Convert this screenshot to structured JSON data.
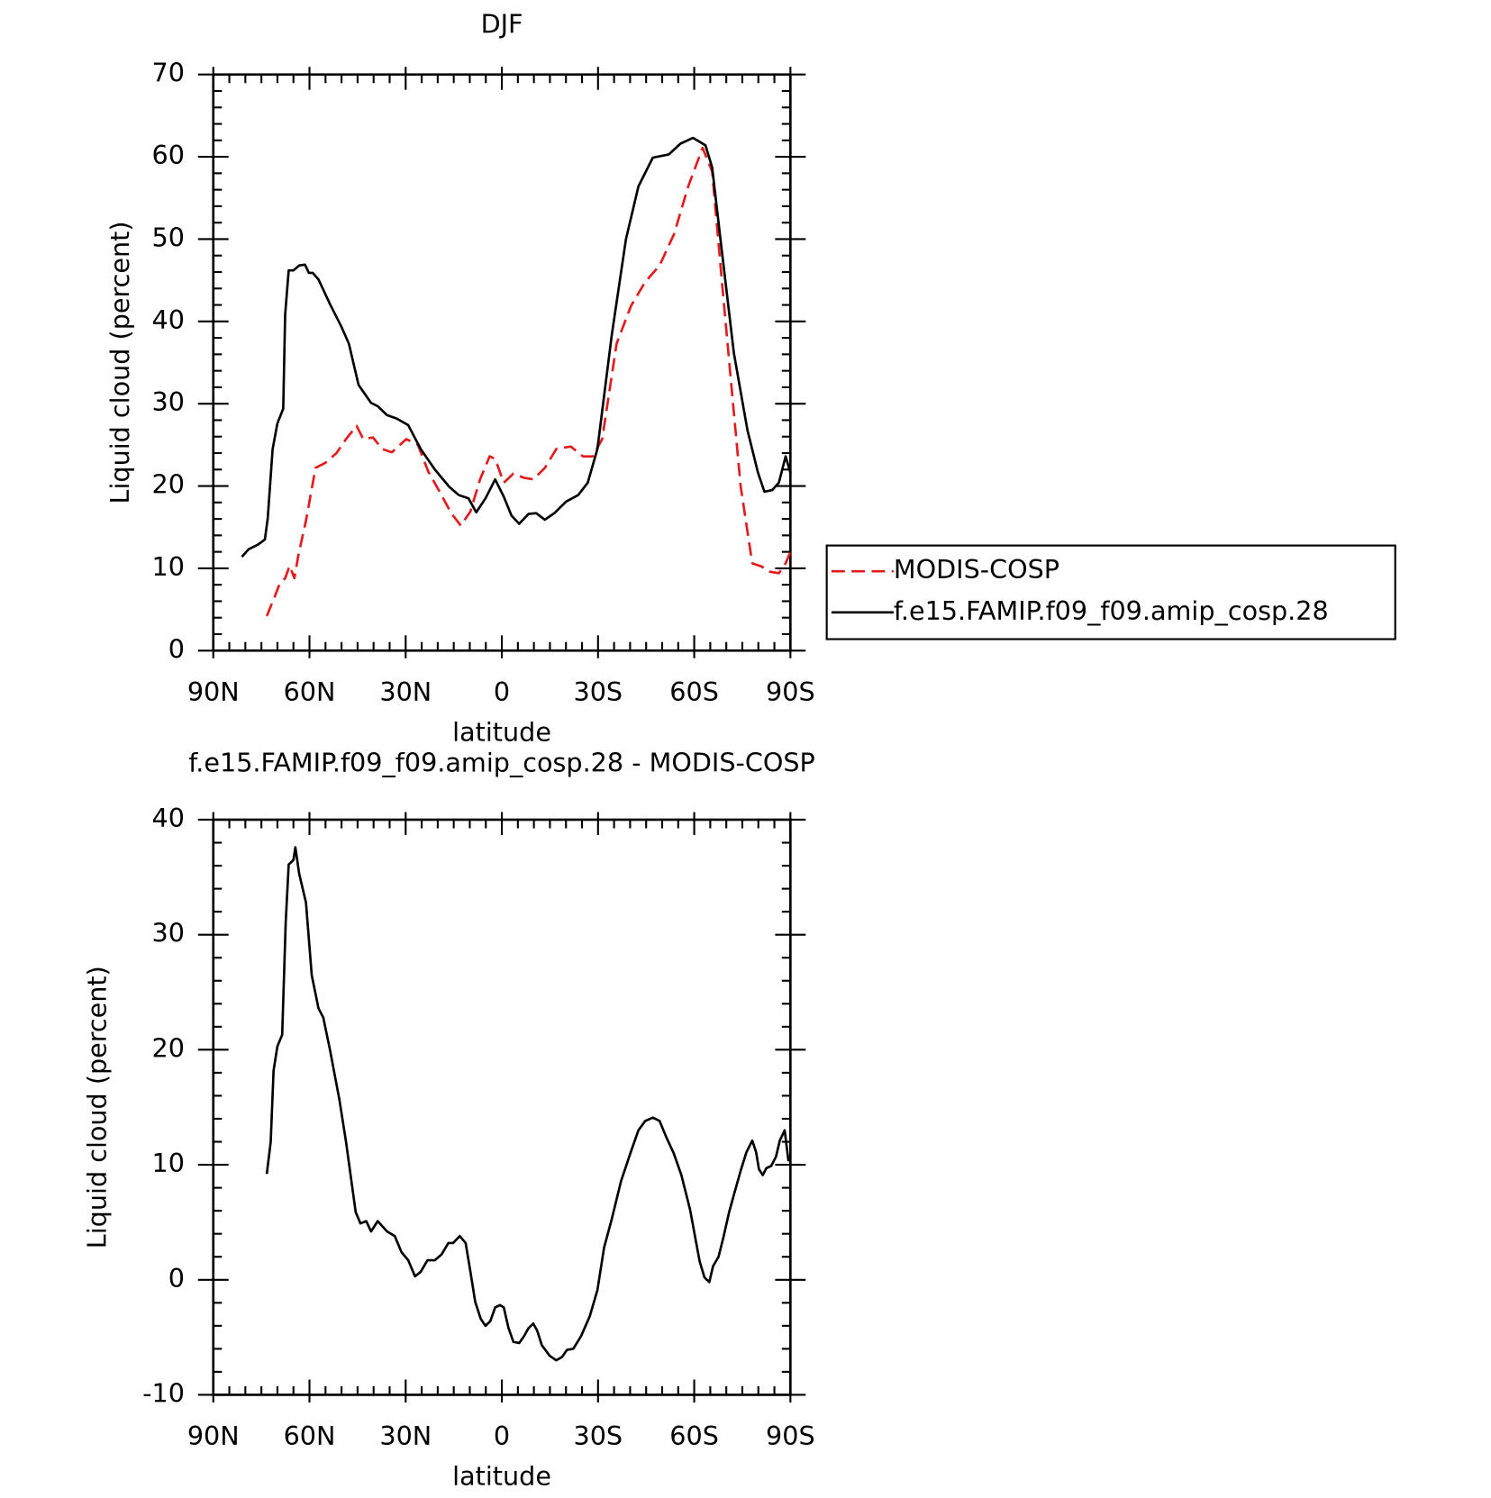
{
  "chart_data": [
    {
      "type": "line",
      "title": "DJF",
      "xlabel": "latitude",
      "ylabel": "Liquid cloud (percent)",
      "xlim": [
        90,
        -90
      ],
      "xticks": [
        {
          "value": 90,
          "label": "90N"
        },
        {
          "value": 60,
          "label": "60N"
        },
        {
          "value": 30,
          "label": "30N"
        },
        0,
        {
          "value": -30,
          "label": "30S"
        },
        {
          "value": -60,
          "label": "60S"
        },
        {
          "value": -90,
          "label": "90S"
        }
      ],
      "ylim": [
        0,
        70
      ],
      "yticks": [
        0,
        10,
        20,
        30,
        40,
        50,
        60,
        70
      ],
      "legend": "right",
      "series": [
        {
          "name": "MODIS-COSP",
          "color": "#e41a1c",
          "dash": true,
          "x": [
            73.3,
            70.9,
            69.4,
            67.6,
            66.2,
            64.7,
            63.5,
            61.1,
            58.1,
            55.1,
            51.6,
            48.6,
            45.3,
            43.2,
            40.2,
            37.3,
            34.3,
            29.8,
            26.2,
            22.9,
            19.4,
            15.8,
            12.8,
            9.8,
            6.8,
            3.8,
            2.1,
            -0.6,
            -3.6,
            -6.9,
            -9.8,
            -13.4,
            -17,
            -21.5,
            -25.3,
            -28.3,
            -31.3,
            -35.8,
            -40.3,
            -44.7,
            -49.2,
            -53.7,
            -58.1,
            -62.6,
            -65.6,
            -68.5,
            -71.5,
            -74.5,
            -78.1,
            -81.1,
            -83.4,
            -86.4,
            -88.5,
            -90
          ],
          "values": [
            4.2,
            6.5,
            8,
            8.8,
            10.3,
            8.8,
            11.5,
            15.8,
            22.2,
            22.8,
            24,
            25.7,
            27.3,
            25.7,
            25.9,
            24.5,
            24.1,
            25.7,
            25,
            21.7,
            19.3,
            16.7,
            15.2,
            16.9,
            20.8,
            23.6,
            23.3,
            20.4,
            21.5,
            21,
            20.8,
            22.2,
            24.5,
            24.8,
            23.6,
            23.6,
            25.7,
            37.3,
            41.9,
            44.8,
            46.8,
            50.6,
            56.4,
            61.1,
            58.2,
            45.4,
            32.6,
            19.9,
            10.6,
            10.2,
            9.6,
            9.4,
            10.6,
            12
          ]
        },
        {
          "name": "f.e15.FAMIP.f09_f09.amip_cosp.28",
          "color": "#000000",
          "dash": false,
          "x": [
            81.1,
            79,
            76,
            73.9,
            73,
            71.5,
            70,
            68.2,
            67.6,
            66.5,
            65,
            63.2,
            61.4,
            60.2,
            59,
            57.2,
            53.6,
            50.1,
            47.7,
            44.7,
            40.8,
            38.7,
            35.8,
            32.8,
            29.2,
            25.3,
            20.9,
            16.4,
            13.4,
            10.4,
            8,
            5.1,
            2.1,
            -0.6,
            -3,
            -5.4,
            -8.3,
            -10.7,
            -13.4,
            -16.4,
            -20,
            -23.8,
            -26.8,
            -29.8,
            -34.3,
            -38.7,
            -42.6,
            -47.1,
            -52.1,
            -55.7,
            -59.6,
            -63.5,
            -65.6,
            -68.5,
            -72.4,
            -76.6,
            -79.9,
            -81.9,
            -84.3,
            -86.4,
            -88.5,
            -90
          ],
          "values": [
            11.4,
            12.3,
            12.9,
            13.5,
            16.1,
            24.5,
            27.6,
            29.4,
            40.8,
            46.2,
            46.2,
            46.8,
            46.9,
            45.9,
            45.9,
            45.1,
            42.1,
            39.4,
            37.3,
            32.3,
            30.1,
            29.7,
            28.6,
            28.2,
            27.4,
            24.5,
            22,
            19.9,
            18.9,
            18.5,
            16.8,
            18.5,
            20.8,
            18.7,
            16.4,
            15.4,
            16.6,
            16.7,
            15.9,
            16.7,
            18.1,
            18.9,
            20.4,
            24.5,
            38.4,
            50,
            56.4,
            59.9,
            60.3,
            61.6,
            62.3,
            61.4,
            58.7,
            48.9,
            36.1,
            26.8,
            21.6,
            19.3,
            19.5,
            20.4,
            23.6,
            21.6
          ]
        }
      ]
    },
    {
      "type": "line",
      "title": "f.e15.FAMIP.f09_f09.amip_cosp.28 - MODIS-COSP",
      "xlabel": "latitude",
      "ylabel": "Liquid cloud (percent)",
      "xlim": [
        90,
        -90
      ],
      "xticks": [
        {
          "value": 90,
          "label": "90N"
        },
        {
          "value": 60,
          "label": "60N"
        },
        {
          "value": 30,
          "label": "30N"
        },
        0,
        {
          "value": -30,
          "label": "30S"
        },
        {
          "value": -60,
          "label": "60S"
        },
        {
          "value": -90,
          "label": "90S"
        }
      ],
      "ylim": [
        -10,
        40
      ],
      "yticks": [
        -10,
        0,
        10,
        20,
        30,
        40
      ],
      "series": [
        {
          "color": "#000000",
          "dash": false,
          "x": [
            73.3,
            72.1,
            71.2,
            70,
            68.5,
            67.4,
            66.5,
            65,
            64.4,
            63.2,
            61.1,
            59.3,
            57.2,
            55.7,
            53.6,
            50.7,
            48.6,
            45.6,
            44.1,
            42.3,
            40.8,
            38.7,
            35.8,
            33.4,
            31.3,
            29.2,
            27.1,
            25.3,
            23.2,
            20.9,
            18.8,
            16.7,
            15.2,
            13.1,
            11.3,
            9.8,
            8.3,
            6.6,
            5.1,
            3.6,
            2.1,
            0.6,
            -0.6,
            -2.1,
            -3.6,
            -5.4,
            -6.9,
            -8.3,
            -9.8,
            -11,
            -12.5,
            -14.9,
            -17,
            -18.8,
            -20.3,
            -22.3,
            -24.7,
            -27.4,
            -29.8,
            -31.9,
            -34.3,
            -37.2,
            -40.2,
            -42.6,
            -44.7,
            -47.1,
            -49.2,
            -51.3,
            -53.6,
            -56,
            -58.7,
            -61.7,
            -63.2,
            -64.7,
            -65.9,
            -67.6,
            -69.1,
            -70.9,
            -72.4,
            -74.5,
            -76.3,
            -78.1,
            -79.3,
            -80.2,
            -81.4,
            -82.5,
            -84,
            -85.5,
            -86.7,
            -88.2,
            -89.4
          ],
          "values": [
            9.2,
            12,
            18.2,
            20.3,
            21.3,
            31.1,
            36.1,
            36.5,
            37.6,
            35.3,
            32.8,
            26.5,
            23.6,
            22.8,
            20,
            15.7,
            12,
            5.9,
            4.9,
            5.1,
            4.2,
            5.1,
            4.2,
            3.8,
            2.4,
            1.7,
            0.3,
            0.7,
            1.7,
            1.7,
            2.2,
            3.2,
            3.2,
            3.8,
            3.2,
            0.7,
            -1.9,
            -3.4,
            -4,
            -3.6,
            -2.4,
            -2.2,
            -2.4,
            -4.2,
            -5.4,
            -5.5,
            -4.9,
            -4.2,
            -3.8,
            -4.4,
            -5.7,
            -6.6,
            -7,
            -6.7,
            -6.1,
            -6,
            -4.9,
            -3.2,
            -0.9,
            2.8,
            5.3,
            8.6,
            11.1,
            13,
            13.8,
            14.1,
            13.8,
            12.4,
            11,
            9.1,
            6.1,
            1.6,
            0.2,
            -0.2,
            1.2,
            2,
            3.7,
            5.9,
            7.4,
            9.5,
            11.1,
            12.1,
            11.1,
            9.6,
            9.1,
            9.7,
            9.9,
            10.7,
            12.1,
            13,
            10.3
          ]
        }
      ]
    }
  ]
}
